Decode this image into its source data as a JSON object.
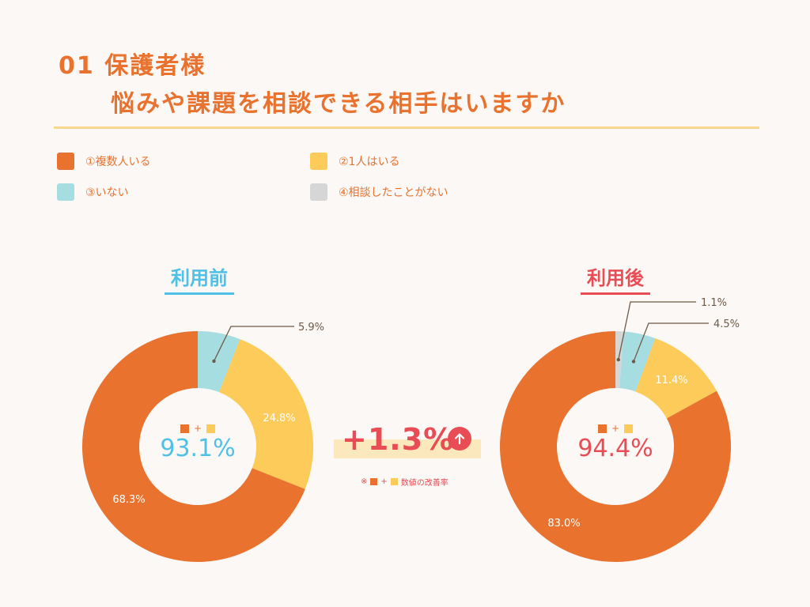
{
  "title": {
    "line1": "01 保護者様",
    "line2": "悩みや課題を相談できる相手はいますか"
  },
  "legend": [
    {
      "label": "①複数人いる",
      "color": "#e8722e"
    },
    {
      "label": "②1人はいる",
      "color": "#fccb59"
    },
    {
      "label": "③いない",
      "color": "#a6dde0"
    },
    {
      "label": "④相談したことがない",
      "color": "#d6d6d6"
    }
  ],
  "before": {
    "heading": "利用前",
    "heading_color": "#4fc0e6",
    "center_plus": "+",
    "center_value": "93.1%"
  },
  "after": {
    "heading": "利用後",
    "heading_color": "#e84d55",
    "center_plus": "+",
    "center_value": "94.4%"
  },
  "difference": {
    "value": "+1.3%",
    "arrow_icon": "up-arrow-icon",
    "note_prefix": "※",
    "note_plus": "+",
    "note_text": "数値の改善率"
  },
  "chart_data": [
    {
      "type": "pie",
      "title": "利用前",
      "categories": [
        "①複数人いる",
        "②1人はいる",
        "③いない",
        "④相談したことがない"
      ],
      "values": [
        68.3,
        24.8,
        5.9,
        0
      ],
      "value_labels": [
        "68.3%",
        "24.8%",
        "5.9%",
        ""
      ],
      "colors": [
        "#e8722e",
        "#fccb59",
        "#a6dde0",
        "#d6d6d6"
      ]
    },
    {
      "type": "pie",
      "title": "利用後",
      "categories": [
        "①複数人いる",
        "②1人はいる",
        "③いない",
        "④相談したことがない"
      ],
      "values": [
        83.0,
        11.4,
        4.5,
        1.1
      ],
      "value_labels": [
        "83.0%",
        "11.4%",
        "4.5%",
        "1.1%"
      ],
      "colors": [
        "#e8722e",
        "#fccb59",
        "#a6dde0",
        "#d6d6d6"
      ]
    }
  ]
}
